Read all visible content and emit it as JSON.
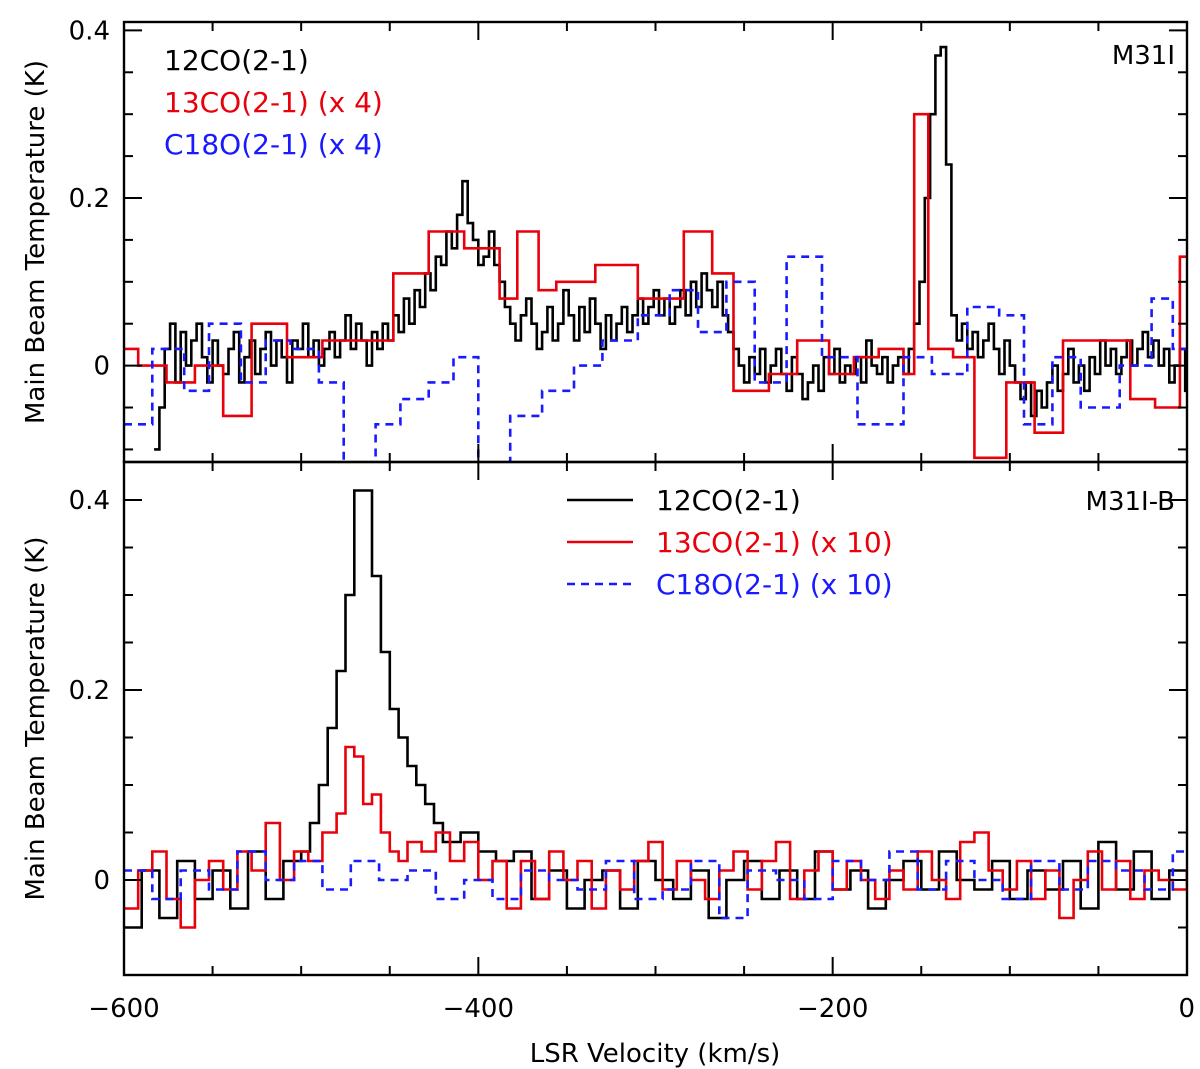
{
  "chart_data": [
    {
      "type": "line",
      "step": true,
      "panel": "top",
      "label": "M31I",
      "ylabel": "Main Beam Temperature (K)",
      "xlabel": "",
      "xlim": [
        -600,
        0
      ],
      "ylim": [
        -0.115,
        0.41
      ],
      "yticks": [
        0,
        0.2,
        0.4
      ],
      "ytick_labels": [
        "0",
        "0.2",
        "0.4"
      ],
      "xticks": [
        -600,
        -400,
        -200,
        0
      ],
      "legend_style": "text",
      "legend_location": "top-left",
      "series": [
        {
          "name": "12CO(2-1)",
          "color": "#000000",
          "dash": "none",
          "x": [
            -583,
            -580,
            -577,
            -574,
            -571,
            -568,
            -565,
            -562,
            -559,
            -556,
            -553,
            -550,
            -547,
            -544,
            -541,
            -538,
            -535,
            -532,
            -529,
            -526,
            -523,
            -520,
            -517,
            -514,
            -511,
            -508,
            -505,
            -502,
            -499,
            -496,
            -493,
            -490,
            -487,
            -484,
            -481,
            -478,
            -475,
            -472,
            -469,
            -466,
            -463,
            -460,
            -457,
            -454,
            -451,
            -448,
            -445,
            -442,
            -439,
            -436,
            -433,
            -430,
            -427,
            -424,
            -421,
            -418,
            -415,
            -412,
            -409,
            -406,
            -403,
            -400,
            -397,
            -394,
            -391,
            -388,
            -385,
            -382,
            -379,
            -376,
            -373,
            -370,
            -367,
            -364,
            -361,
            -358,
            -355,
            -352,
            -349,
            -346,
            -343,
            -340,
            -337,
            -334,
            -331,
            -328,
            -325,
            -322,
            -319,
            -316,
            -313,
            -310,
            -307,
            -304,
            -301,
            -298,
            -295,
            -292,
            -289,
            -286,
            -283,
            -280,
            -277,
            -274,
            -271,
            -268,
            -265,
            -262,
            -259,
            -256,
            -253,
            -250,
            -247,
            -244,
            -241,
            -238,
            -235,
            -232,
            -229,
            -226,
            -223,
            -220,
            -217,
            -214,
            -211,
            -208,
            -205,
            -202,
            -199,
            -196,
            -193,
            -190,
            -187,
            -184,
            -181,
            -178,
            -175,
            -172,
            -169,
            -166,
            -163,
            -160,
            -157,
            -154,
            -151,
            -148,
            -145,
            -142,
            -139,
            -136,
            -133,
            -130,
            -127,
            -124,
            -121,
            -118,
            -115,
            -112,
            -109,
            -106,
            -103,
            -100,
            -97,
            -94,
            -91,
            -88,
            -85,
            -82,
            -79,
            -76,
            -73,
            -70,
            -67,
            -64,
            -61,
            -58,
            -55,
            -52,
            -49,
            -46,
            -43,
            -40,
            -37,
            -34,
            -31,
            -28,
            -25,
            -22,
            -19,
            -16,
            -13,
            -10,
            -7,
            -4,
            -1
          ],
          "values": [
            -0.1,
            -0.05,
            0.02,
            0.05,
            -0.02,
            0.04,
            0.0,
            0.03,
            0.05,
            0.01,
            -0.02,
            0.03,
            0.0,
            -0.01,
            0.02,
            0.04,
            -0.02,
            0.01,
            0.03,
            -0.01,
            0.02,
            0.04,
            0.0,
            0.03,
            0.01,
            -0.02,
            0.03,
            0.02,
            0.05,
            0.01,
            0.03,
            0.0,
            0.02,
            0.04,
            0.01,
            0.03,
            0.06,
            0.02,
            0.05,
            0.03,
            0.0,
            0.04,
            0.02,
            0.05,
            0.03,
            0.06,
            0.04,
            0.08,
            0.05,
            0.09,
            0.07,
            0.11,
            0.09,
            0.13,
            0.12,
            0.16,
            0.14,
            0.18,
            0.22,
            0.17,
            0.15,
            0.12,
            0.13,
            0.16,
            0.12,
            0.1,
            0.07,
            0.05,
            0.03,
            0.06,
            0.08,
            0.05,
            0.02,
            0.04,
            0.07,
            0.03,
            0.05,
            0.09,
            0.06,
            0.03,
            0.07,
            0.04,
            0.08,
            0.05,
            0.02,
            0.06,
            0.03,
            0.05,
            0.07,
            0.04,
            0.06,
            0.08,
            0.05,
            0.07,
            0.09,
            0.06,
            0.08,
            0.05,
            0.07,
            0.09,
            0.06,
            0.1,
            0.07,
            0.11,
            0.09,
            0.07,
            0.1,
            0.06,
            0.04,
            0.02,
            0.0,
            -0.02,
            0.01,
            -0.01,
            0.02,
            -0.02,
            0.0,
            0.02,
            -0.01,
            -0.03,
            0.01,
            -0.01,
            -0.04,
            -0.02,
            0.0,
            -0.03,
            0.01,
            -0.01,
            0.02,
            -0.02,
            0.0,
            -0.01,
            0.01,
            -0.02,
            0.03,
            0.0,
            -0.01,
            0.01,
            -0.02,
            0.0,
            0.01,
            -0.01,
            0.02,
            0.05,
            0.1,
            0.2,
            0.3,
            0.37,
            0.38,
            0.24,
            0.06,
            0.03,
            0.05,
            0.02,
            0.04,
            0.01,
            0.03,
            0.05,
            0.02,
            -0.01,
            0.03,
            0.0,
            -0.02,
            -0.04,
            -0.02,
            -0.06,
            -0.03,
            -0.05,
            -0.02,
            0.0,
            -0.03,
            -0.01,
            0.02,
            -0.02,
            0.0,
            -0.03,
            0.01,
            -0.01,
            0.03,
            0.0,
            0.02,
            -0.01,
            0.01,
            0.03,
            0.0,
            0.02,
            0.04,
            0.01,
            0.03,
            0.0,
            0.02,
            -0.02,
            0.0,
            0.02,
            -0.03
          ]
        },
        {
          "name": "13CO(2-1) (x 4)",
          "color": "#e8000b",
          "dash": "none",
          "x": [
            -600,
            -592,
            -576,
            -560,
            -544,
            -528,
            -508,
            -488,
            -468,
            -448,
            -428,
            -408,
            -388,
            -378,
            -366,
            -356,
            -334,
            -310,
            -284,
            -268,
            -256,
            -236,
            -220,
            -202,
            -188,
            -174,
            -160,
            -154,
            -146,
            -132,
            -120,
            -102,
            -86,
            -70,
            -48,
            -32,
            -18,
            -4
          ],
          "values": [
            0.02,
            0.0,
            -0.02,
            0.0,
            -0.06,
            0.05,
            0.01,
            0.03,
            0.03,
            0.11,
            0.16,
            0.14,
            0.08,
            0.16,
            0.09,
            0.1,
            0.12,
            0.08,
            0.16,
            0.11,
            -0.03,
            -0.01,
            0.03,
            -0.01,
            0.01,
            0.02,
            -0.01,
            0.3,
            0.02,
            0.01,
            -0.11,
            -0.02,
            -0.08,
            0.03,
            0.03,
            -0.04,
            -0.05,
            0.13
          ]
        },
        {
          "name": "C18O(2-1) (x 4)",
          "color": "#1a1aff",
          "dash": "8,6",
          "x": [
            -600,
            -584,
            -566,
            -552,
            -534,
            -520,
            -506,
            -490,
            -476,
            -458,
            -444,
            -428,
            -414,
            -400,
            -382,
            -364,
            -346,
            -330,
            -310,
            -292,
            -276,
            -260,
            -244,
            -226,
            -206,
            -186,
            -160,
            -144,
            -124,
            -106,
            -92,
            -76,
            -60,
            -38,
            -20,
            -8
          ],
          "values": [
            -0.07,
            0.02,
            -0.03,
            0.05,
            -0.02,
            0.03,
            0.02,
            -0.02,
            -0.12,
            -0.07,
            -0.04,
            -0.02,
            0.01,
            -0.14,
            -0.06,
            -0.03,
            0.0,
            0.03,
            0.06,
            0.09,
            0.04,
            0.1,
            -0.02,
            0.13,
            0.01,
            -0.07,
            0.01,
            -0.01,
            0.07,
            0.06,
            -0.07,
            0.01,
            -0.05,
            0.0,
            0.08,
            0.02
          ]
        }
      ]
    },
    {
      "type": "line",
      "step": true,
      "panel": "bottom",
      "label": "M31I-B",
      "ylabel": "Main Beam Temperature (K)",
      "xlabel": "LSR Velocity (km/s)",
      "xlim": [
        -600,
        0
      ],
      "ylim": [
        -0.1,
        0.44
      ],
      "yticks": [
        0,
        0.2,
        0.4
      ],
      "ytick_labels": [
        "0",
        "0.2",
        "0.4"
      ],
      "xticks": [
        -600,
        -400,
        -200,
        0
      ],
      "xtick_labels": [
        "−600",
        "−400",
        "−200",
        "0"
      ],
      "legend_style": "lines",
      "legend_location": "top-right",
      "series": [
        {
          "name": "12CO(2-1)",
          "color": "#000000",
          "dash": "none",
          "x": [
            -600,
            -590,
            -580,
            -570,
            -560,
            -550,
            -540,
            -530,
            -520,
            -510,
            -500,
            -495,
            -490,
            -485,
            -480,
            -475,
            -470,
            -465,
            -460,
            -455,
            -450,
            -445,
            -440,
            -435,
            -430,
            -425,
            -420,
            -410,
            -400,
            -390,
            -380,
            -370,
            -360,
            -350,
            -340,
            -330,
            -320,
            -310,
            -300,
            -290,
            -280,
            -270,
            -260,
            -250,
            -240,
            -230,
            -220,
            -210,
            -200,
            -190,
            -180,
            -170,
            -160,
            -150,
            -140,
            -130,
            -120,
            -110,
            -100,
            -90,
            -80,
            -70,
            -60,
            -50,
            -40,
            -30,
            -20,
            -10,
            0
          ],
          "values": [
            -0.05,
            0.01,
            -0.04,
            0.02,
            -0.02,
            0.01,
            -0.03,
            0.03,
            -0.02,
            0.02,
            0.03,
            0.06,
            0.1,
            0.16,
            0.22,
            0.3,
            0.41,
            0.41,
            0.32,
            0.24,
            0.18,
            0.15,
            0.12,
            0.1,
            0.08,
            0.06,
            0.04,
            0.05,
            0.03,
            0.02,
            0.03,
            -0.02,
            0.01,
            -0.03,
            0.0,
            0.01,
            -0.03,
            0.02,
            0.0,
            -0.02,
            0.01,
            -0.04,
            0.0,
            0.02,
            -0.02,
            0.01,
            -0.02,
            0.03,
            -0.01,
            0.01,
            -0.03,
            0.0,
            0.02,
            -0.01,
            0.03,
            0.0,
            -0.01,
            0.02,
            -0.02,
            0.01,
            -0.01,
            0.02,
            -0.03,
            0.04,
            -0.01,
            0.03,
            -0.02,
            0.01,
            0.0
          ]
        },
        {
          "name": "13CO(2-1) (x 10)",
          "color": "#e8000b",
          "dash": "none",
          "x": [
            -600,
            -592,
            -584,
            -576,
            -568,
            -560,
            -552,
            -544,
            -536,
            -528,
            -520,
            -512,
            -504,
            -496,
            -488,
            -480,
            -475,
            -470,
            -465,
            -460,
            -455,
            -450,
            -445,
            -440,
            -432,
            -424,
            -416,
            -408,
            -400,
            -392,
            -384,
            -376,
            -368,
            -360,
            -352,
            -344,
            -336,
            -328,
            -320,
            -312,
            -304,
            -296,
            -288,
            -280,
            -272,
            -264,
            -256,
            -248,
            -240,
            -232,
            -224,
            -216,
            -208,
            -200,
            -192,
            -184,
            -176,
            -168,
            -160,
            -152,
            -144,
            -136,
            -128,
            -120,
            -112,
            -104,
            -96,
            -88,
            -80,
            -72,
            -64,
            -56,
            -48,
            -40,
            -32,
            -24,
            -16,
            -8,
            0
          ],
          "values": [
            -0.03,
            0.01,
            0.03,
            -0.02,
            -0.05,
            0.0,
            0.02,
            -0.01,
            0.03,
            0.01,
            0.06,
            0.0,
            0.03,
            0.02,
            0.05,
            0.07,
            0.14,
            0.13,
            0.08,
            0.09,
            0.05,
            0.03,
            0.02,
            0.04,
            0.03,
            0.05,
            0.02,
            0.04,
            0.0,
            0.02,
            -0.03,
            0.02,
            -0.02,
            0.03,
            0.0,
            0.02,
            -0.03,
            0.01,
            -0.01,
            0.02,
            0.04,
            -0.01,
            0.02,
            0.0,
            -0.02,
            0.01,
            0.03,
            -0.01,
            0.02,
            0.04,
            -0.02,
            0.01,
            0.03,
            -0.01,
            0.02,
            0.0,
            -0.02,
            0.01,
            -0.01,
            0.03,
            0.0,
            -0.02,
            0.04,
            0.05,
            0.01,
            -0.01,
            0.02,
            -0.02,
            0.01,
            -0.04,
            0.0,
            0.03,
            -0.01,
            0.02,
            -0.02,
            0.01,
            0.0,
            -0.01,
            0.01
          ]
        },
        {
          "name": "C18O(2-1) (x 10)",
          "color": "#1a1aff",
          "dash": "8,6",
          "x": [
            -600,
            -584,
            -568,
            -552,
            -536,
            -520,
            -504,
            -488,
            -472,
            -456,
            -440,
            -424,
            -408,
            -392,
            -376,
            -360,
            -344,
            -328,
            -312,
            -296,
            -280,
            -264,
            -248,
            -232,
            -216,
            -200,
            -184,
            -168,
            -152,
            -136,
            -120,
            -104,
            -88,
            -72,
            -56,
            -40,
            -24,
            -8
          ],
          "values": [
            0.01,
            -0.02,
            0.01,
            -0.01,
            0.03,
            0.0,
            0.02,
            -0.01,
            0.02,
            0.0,
            0.01,
            -0.02,
            0.0,
            -0.02,
            0.01,
            0.0,
            -0.01,
            0.02,
            -0.02,
            -0.01,
            0.02,
            -0.04,
            0.01,
            0.0,
            -0.02,
            0.02,
            0.0,
            0.03,
            -0.01,
            0.02,
            0.0,
            -0.02,
            0.02,
            -0.01,
            0.02,
            0.01,
            -0.01,
            0.03
          ]
        }
      ]
    }
  ]
}
